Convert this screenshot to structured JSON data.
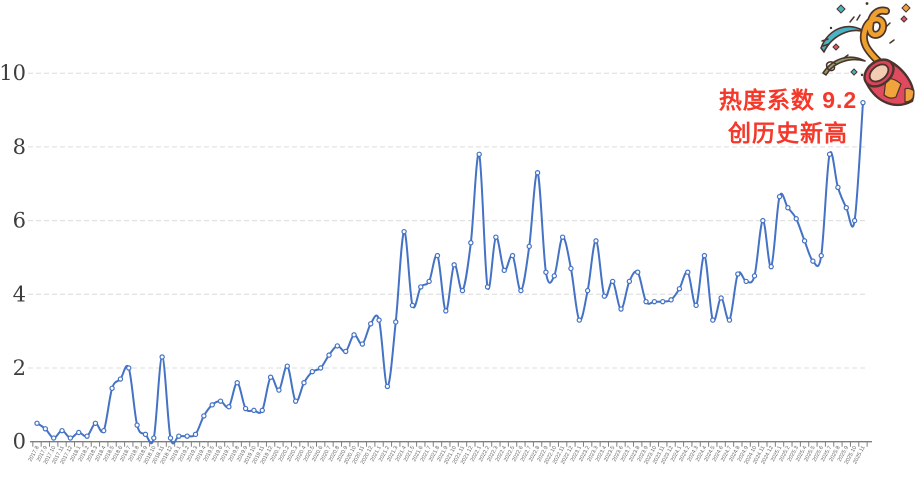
{
  "chart_data": {
    "type": "line",
    "title": "",
    "xlabel": "",
    "ylabel": "",
    "ylim": [
      0,
      10
    ],
    "yticks": [
      0,
      2,
      4,
      6,
      8,
      10
    ],
    "grid": "horizontal-dashed",
    "legend": "none",
    "line_color": "#4472c4",
    "marker_style": "circle-white-fill",
    "gridline_color": "#dcdcdc",
    "axis_color": "#7f7f7f",
    "ytick_label_color": "#3d3d3d",
    "xtick_label_color": "#666666",
    "x_labels": [
      "2017.8",
      "2017.9",
      "2017.10",
      "2017.11",
      "2017.12",
      "2018.1",
      "2018.2",
      "2018.3",
      "2018.4",
      "2018.5",
      "2018.6",
      "2018.7",
      "2018.8",
      "2018.9",
      "2018.10",
      "2018.11",
      "2018.12",
      "2019.1",
      "2019.2",
      "2019.3",
      "2019.4",
      "2019.5",
      "2019.6",
      "2019.7",
      "2019.8",
      "2019.9",
      "2019.10",
      "2019.11",
      "2019.12",
      "2020.1",
      "2020.2",
      "2020.3",
      "2020.4",
      "2020.5",
      "2020.6",
      "2020.7",
      "2020.8",
      "2020.9",
      "2020.10",
      "2020.11",
      "2020.12",
      "2021.1",
      "2021.2",
      "2021.3",
      "2021.4",
      "2021.5",
      "2021.6",
      "2021.7",
      "2021.8",
      "2021.9",
      "2021.10",
      "2021.11",
      "2021.12",
      "2022.1",
      "2022.2",
      "2022.3",
      "2022.4",
      "2022.5",
      "2022.6",
      "2022.7",
      "2022.8",
      "2022.9",
      "2022.10",
      "2022.11",
      "2022.12",
      "2023.1",
      "2023.2",
      "2023.3",
      "2023.4",
      "2023.5",
      "2023.6",
      "2023.7",
      "2023.8",
      "2023.9",
      "2023.10",
      "2023.11",
      "2023.12",
      "2024.1",
      "2024.2",
      "2024.3",
      "2024.4",
      "2024.5",
      "2024.6",
      "2024.7",
      "2024.8",
      "2024.9",
      "2024.10",
      "2024.11",
      "2024.12",
      "2025.1",
      "2025.2",
      "2025.3",
      "2025.4",
      "2025.5",
      "2025.6",
      "2025.7",
      "2025.8",
      "2025.9",
      "2025.10",
      "2025.11"
    ],
    "values": [
      0.5,
      0.35,
      0.1,
      0.3,
      0.1,
      0.25,
      0.15,
      0.5,
      0.3,
      1.45,
      1.7,
      2.0,
      0.45,
      0.2,
      0.1,
      2.3,
      0.1,
      0.15,
      0.15,
      0.2,
      0.7,
      1.0,
      1.1,
      0.95,
      1.6,
      0.9,
      0.85,
      0.85,
      1.75,
      1.4,
      2.05,
      1.1,
      1.6,
      1.9,
      2.0,
      2.35,
      2.6,
      2.45,
      2.9,
      2.65,
      3.2,
      3.3,
      1.5,
      3.25,
      5.7,
      3.7,
      4.2,
      4.35,
      5.05,
      3.55,
      4.8,
      4.1,
      5.4,
      7.8,
      4.2,
      5.55,
      4.65,
      5.05,
      4.1,
      5.3,
      7.3,
      4.6,
      4.5,
      5.55,
      4.7,
      3.3,
      4.1,
      5.45,
      3.95,
      4.35,
      3.6,
      4.35,
      4.6,
      3.8,
      3.8,
      3.8,
      3.85,
      4.15,
      4.6,
      3.7,
      5.05,
      3.3,
      3.9,
      3.3,
      4.55,
      4.35,
      4.5,
      6.0,
      4.75,
      6.65,
      6.35,
      6.05,
      5.45,
      4.9,
      5.05,
      7.8,
      6.9,
      6.35,
      6.0,
      9.2
    ],
    "annotation": {
      "line1": "热度系数 9.2",
      "line2": "创历史新高",
      "color": "#f4382a"
    },
    "highlight_point": {
      "x": "2025.11",
      "value": 9.2
    }
  }
}
